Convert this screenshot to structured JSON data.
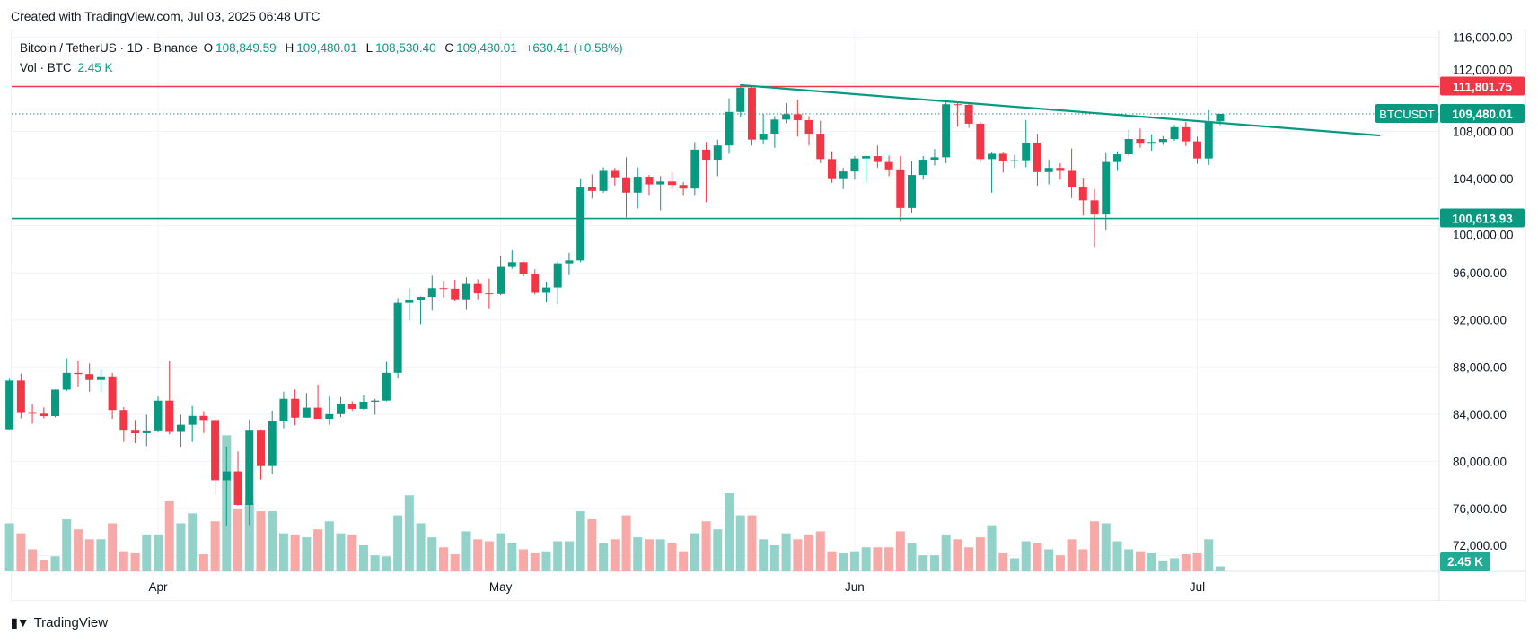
{
  "header": {
    "created": "Created with TradingView.com, Jul 03, 2025 06:48 UTC"
  },
  "legend": {
    "symbol": "Bitcoin / TetherUS · 1D · Binance",
    "o_label": "O",
    "o": "108,849.59",
    "h_label": "H",
    "h": "109,480.01",
    "l_label": "L",
    "l": "108,530.40",
    "c_label": "C",
    "c": "109,480.01",
    "change": "+630.41 (+0.58%)",
    "vol_label": "Vol · BTC",
    "vol": "2.45 K"
  },
  "footer": {
    "brand": "TradingView",
    "logo_icon": "tradingview-logo-icon"
  },
  "colors": {
    "up": "#089981",
    "down": "#F23645",
    "up_vol": "#92D2C8",
    "down_vol": "#F7A9A7",
    "resistance": "#F23645",
    "support": "#089981",
    "trendline": "#089981"
  },
  "chart_data": {
    "type": "candlestick",
    "symbol": "BTCUSDT",
    "interval": "1D",
    "ylim": [
      70000,
      117500
    ],
    "y_ticks": [
      72000,
      76000,
      80000,
      84000,
      88000,
      92000,
      96000,
      100000,
      104000,
      108000,
      112000,
      116000
    ],
    "y_tick_labels": [
      "72,000.00",
      "76,000.00",
      "80,000.00",
      "84,000.00",
      "88,000.00",
      "92,000.00",
      "96,000.00",
      "100,000.00",
      "104,000.00",
      "108,000.00",
      "112,000.00",
      "116,000.00"
    ],
    "x_ticks": [
      {
        "date": "2025-04-01",
        "label": "Apr"
      },
      {
        "date": "2025-05-01",
        "label": "May"
      },
      {
        "date": "2025-06-01",
        "label": "Jun"
      },
      {
        "date": "2025-07-01",
        "label": "Jul"
      }
    ],
    "grid": true,
    "volume_unit": "K BTC",
    "candles": [
      [
        "2025-03-19",
        82720,
        87000,
        82600,
        86850,
        24
      ],
      [
        "2025-03-20",
        86850,
        87450,
        83650,
        84170,
        19
      ],
      [
        "2025-03-21",
        84170,
        84850,
        83180,
        84040,
        11
      ],
      [
        "2025-03-22",
        84040,
        84570,
        83650,
        83830,
        5.5
      ],
      [
        "2025-03-23",
        83830,
        86100,
        83730,
        86080,
        7.5
      ],
      [
        "2025-03-24",
        86080,
        88750,
        85950,
        87500,
        26
      ],
      [
        "2025-03-25",
        87500,
        88550,
        86300,
        87400,
        21
      ],
      [
        "2025-03-26",
        87400,
        88300,
        85900,
        86900,
        16
      ],
      [
        "2025-03-27",
        86900,
        87800,
        85850,
        87200,
        16
      ],
      [
        "2025-03-28",
        87200,
        87500,
        83600,
        84350,
        24
      ],
      [
        "2025-03-29",
        84350,
        84600,
        81650,
        82600,
        10
      ],
      [
        "2025-03-30",
        82600,
        83500,
        81550,
        82390,
        9
      ],
      [
        "2025-03-31",
        82390,
        83950,
        81300,
        82550,
        18
      ],
      [
        "2025-04-01",
        82550,
        85500,
        82450,
        85150,
        18
      ],
      [
        "2025-04-02",
        85150,
        88500,
        82300,
        82500,
        35
      ],
      [
        "2025-04-03",
        82500,
        83950,
        81200,
        83100,
        24
      ],
      [
        "2025-04-04",
        83100,
        84700,
        81650,
        83850,
        29
      ],
      [
        "2025-04-05",
        83850,
        84250,
        82400,
        83500,
        8.5
      ],
      [
        "2025-04-06",
        83500,
        83800,
        77150,
        78400,
        25
      ],
      [
        "2025-04-07",
        78400,
        81250,
        74500,
        79150,
        68
      ],
      [
        "2025-04-08",
        79150,
        80850,
        76250,
        76300,
        31
      ],
      [
        "2025-04-09",
        76300,
        83550,
        74600,
        82600,
        34
      ],
      [
        "2025-04-10",
        82600,
        82700,
        78450,
        79600,
        30
      ],
      [
        "2025-04-11",
        79600,
        84300,
        78900,
        83400,
        30
      ],
      [
        "2025-04-12",
        83400,
        85900,
        82800,
        85300,
        19
      ],
      [
        "2025-04-13",
        85300,
        86100,
        83050,
        83700,
        18
      ],
      [
        "2025-04-14",
        83700,
        85800,
        83700,
        84550,
        17
      ],
      [
        "2025-04-15",
        84550,
        86500,
        83600,
        83600,
        21
      ],
      [
        "2025-04-16",
        83600,
        85500,
        83100,
        84000,
        25
      ],
      [
        "2025-04-17",
        84000,
        85450,
        83750,
        84900,
        19
      ],
      [
        "2025-04-18",
        84900,
        85100,
        84300,
        84450,
        18
      ],
      [
        "2025-04-19",
        84450,
        85600,
        84400,
        85050,
        13
      ],
      [
        "2025-04-20",
        85050,
        85300,
        83950,
        85150,
        8
      ],
      [
        "2025-04-21",
        85150,
        88450,
        85100,
        87500,
        7.5
      ],
      [
        "2025-04-22",
        87500,
        93850,
        87050,
        93450,
        28
      ],
      [
        "2025-04-23",
        93450,
        94700,
        91950,
        93700,
        38
      ],
      [
        "2025-04-24",
        93700,
        94000,
        91650,
        93950,
        24
      ],
      [
        "2025-04-25",
        93950,
        95750,
        92800,
        94700,
        17
      ],
      [
        "2025-04-26",
        94700,
        95300,
        93900,
        94650,
        12
      ],
      [
        "2025-04-27",
        94650,
        95400,
        93550,
        93750,
        8.5
      ],
      [
        "2025-04-28",
        93750,
        95600,
        92850,
        95050,
        20
      ],
      [
        "2025-04-29",
        95050,
        95450,
        93750,
        94250,
        16
      ],
      [
        "2025-04-30",
        94250,
        95500,
        92900,
        94200,
        15
      ],
      [
        "2025-05-01",
        94200,
        97450,
        94100,
        96500,
        19
      ],
      [
        "2025-05-02",
        96500,
        97900,
        96350,
        96900,
        14
      ],
      [
        "2025-05-03",
        96900,
        96950,
        95700,
        95900,
        11
      ],
      [
        "2025-05-04",
        95900,
        96300,
        94150,
        94300,
        9
      ],
      [
        "2025-05-05",
        94300,
        95200,
        93500,
        94750,
        10
      ],
      [
        "2025-05-06",
        94750,
        96950,
        93350,
        96800,
        15
      ],
      [
        "2025-05-07",
        96800,
        97700,
        95800,
        97050,
        15
      ],
      [
        "2025-05-08",
        97050,
        103950,
        96900,
        103250,
        30
      ],
      [
        "2025-05-09",
        103250,
        104350,
        102300,
        102950,
        26
      ],
      [
        "2025-05-10",
        102950,
        104950,
        102800,
        104650,
        14
      ],
      [
        "2025-05-11",
        104650,
        104900,
        103400,
        104100,
        16
      ],
      [
        "2025-05-12",
        104100,
        105800,
        100700,
        102800,
        28
      ],
      [
        "2025-05-13",
        102800,
        104950,
        101450,
        104150,
        17
      ],
      [
        "2025-05-14",
        104150,
        104300,
        102600,
        103500,
        16
      ],
      [
        "2025-05-15",
        103500,
        104200,
        101300,
        103750,
        16
      ],
      [
        "2025-05-16",
        103750,
        104550,
        103100,
        103450,
        14
      ],
      [
        "2025-05-17",
        103450,
        103700,
        102600,
        103150,
        10
      ],
      [
        "2025-05-18",
        103150,
        107100,
        102600,
        106450,
        19
      ],
      [
        "2025-05-19",
        106450,
        107100,
        102000,
        105600,
        25
      ],
      [
        "2025-05-20",
        105600,
        107300,
        104200,
        106800,
        21
      ],
      [
        "2025-05-21",
        106800,
        110800,
        106100,
        109650,
        39
      ],
      [
        "2025-05-22",
        109650,
        111980,
        109200,
        111700,
        28
      ],
      [
        "2025-05-23",
        111700,
        111800,
        106800,
        107300,
        28
      ],
      [
        "2025-05-24",
        107300,
        109500,
        106900,
        107800,
        16
      ],
      [
        "2025-05-25",
        107800,
        109300,
        106600,
        109000,
        13
      ],
      [
        "2025-05-26",
        109000,
        110400,
        108700,
        109450,
        19
      ],
      [
        "2025-05-27",
        109450,
        110700,
        107550,
        108950,
        16
      ],
      [
        "2025-05-28",
        108950,
        109300,
        106800,
        107800,
        18
      ],
      [
        "2025-05-29",
        107800,
        108900,
        105300,
        105650,
        20
      ],
      [
        "2025-05-30",
        105650,
        106300,
        103650,
        103950,
        10
      ],
      [
        "2025-05-31",
        103950,
        104900,
        103100,
        104600,
        9
      ],
      [
        "2025-06-01",
        104600,
        105900,
        103900,
        105700,
        10
      ],
      [
        "2025-06-02",
        105700,
        105950,
        103700,
        105900,
        12
      ],
      [
        "2025-06-03",
        105900,
        106800,
        104900,
        105400,
        12
      ],
      [
        "2025-06-04",
        105400,
        105950,
        104200,
        104700,
        12
      ],
      [
        "2025-06-05",
        104700,
        105900,
        100400,
        101500,
        20
      ],
      [
        "2025-06-06",
        101500,
        105450,
        101100,
        104300,
        14
      ],
      [
        "2025-06-07",
        104300,
        105900,
        103900,
        105600,
        8
      ],
      [
        "2025-06-08",
        105600,
        106500,
        105100,
        105800,
        8
      ],
      [
        "2025-06-09",
        105800,
        110600,
        105300,
        110300,
        18
      ],
      [
        "2025-06-10",
        110300,
        110400,
        108400,
        110250,
        16
      ],
      [
        "2025-06-11",
        110250,
        110400,
        108300,
        108650,
        12
      ],
      [
        "2025-06-12",
        108650,
        108800,
        105400,
        105650,
        17
      ],
      [
        "2025-06-13",
        105650,
        106200,
        102800,
        106100,
        23
      ],
      [
        "2025-06-14",
        106100,
        106200,
        104500,
        105450,
        9
      ],
      [
        "2025-06-15",
        105450,
        106000,
        104900,
        105550,
        6.5
      ],
      [
        "2025-06-16",
        105550,
        108950,
        104950,
        107000,
        15
      ],
      [
        "2025-06-17",
        107000,
        107800,
        103400,
        104550,
        14
      ],
      [
        "2025-06-18",
        104550,
        105600,
        103500,
        104900,
        11
      ],
      [
        "2025-06-19",
        104900,
        105300,
        103900,
        104650,
        8
      ],
      [
        "2025-06-20",
        104650,
        106550,
        102350,
        103300,
        16
      ],
      [
        "2025-06-21",
        103300,
        104000,
        100850,
        102150,
        11
      ],
      [
        "2025-06-22",
        102150,
        103100,
        98200,
        100950,
        25
      ],
      [
        "2025-06-23",
        100950,
        106150,
        99600,
        105400,
        24
      ],
      [
        "2025-06-24",
        105400,
        106300,
        104650,
        106050,
        15
      ],
      [
        "2025-06-25",
        106050,
        108100,
        105900,
        107350,
        11
      ],
      [
        "2025-06-26",
        107350,
        108250,
        106600,
        106950,
        10
      ],
      [
        "2025-06-27",
        106950,
        107750,
        106350,
        107100,
        9
      ],
      [
        "2025-06-28",
        107100,
        107600,
        106850,
        107350,
        5
      ],
      [
        "2025-06-29",
        107350,
        108550,
        107200,
        108350,
        6.5
      ],
      [
        "2025-06-30",
        108350,
        108800,
        106750,
        107150,
        8.5
      ],
      [
        "2025-07-01",
        107150,
        107550,
        105250,
        105700,
        9
      ],
      [
        "2025-07-02",
        105700,
        109800,
        105150,
        108850,
        16
      ],
      [
        "2025-07-03",
        108849.59,
        109480.01,
        108530.4,
        109480.01,
        2.45
      ]
    ],
    "horizontal_lines": [
      {
        "price": 111801.75,
        "label": "111,801.75",
        "color": "#F23645"
      },
      {
        "price": 100613.93,
        "label": "100,613.93",
        "color": "#089981"
      }
    ],
    "trendline": {
      "start": {
        "date": "2025-05-22",
        "price": 111920
      },
      "end": {
        "date": "2025-07-17",
        "price": 107650
      },
      "color": "#089981"
    },
    "last_price": {
      "symbol_label": "BTCUSDT",
      "price": 109480.01,
      "label": "109,480.01"
    },
    "last_volume_label": "2.45 K"
  }
}
